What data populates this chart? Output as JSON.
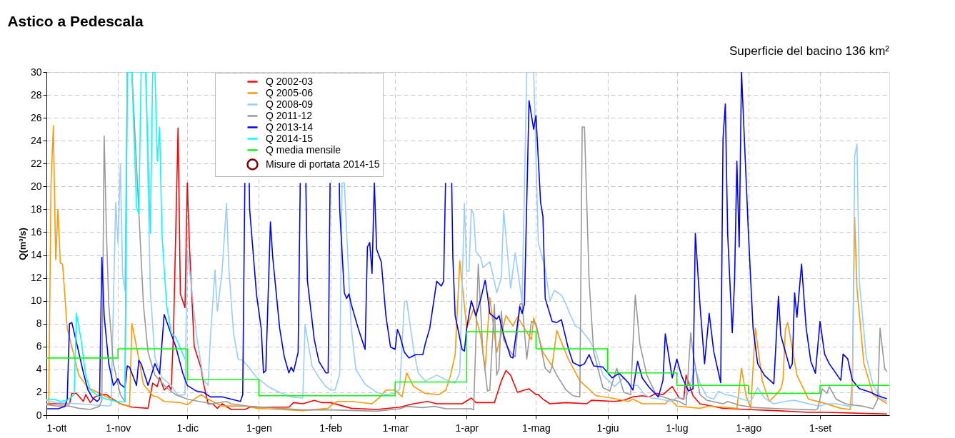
{
  "chart_data": {
    "type": "line",
    "title": "Astico a Pedescala",
    "ylabel": "Q(m³/s)",
    "annotations": [
      "Superficie del bacino 136 km²"
    ],
    "xlim": [
      "2014-10-01",
      "2015-10-01"
    ],
    "ylim": [
      0,
      30
    ],
    "xticks": [
      {
        "value": "2014-10-01",
        "label": "1-ott"
      },
      {
        "value": "2014-11-01",
        "label": "1-nov"
      },
      {
        "value": "2014-12-01",
        "label": "1-dic"
      },
      {
        "value": "2015-01-01",
        "label": "1-gen"
      },
      {
        "value": "2015-02-01",
        "label": "1-feb"
      },
      {
        "value": "2015-03-01",
        "label": "1-mar"
      },
      {
        "value": "2015-04-01",
        "label": "1-apr"
      },
      {
        "value": "2015-05-01",
        "label": "1-mag"
      },
      {
        "value": "2015-06-01",
        "label": "1-giu"
      },
      {
        "value": "2015-07-01",
        "label": "1-lug"
      },
      {
        "value": "2015-08-01",
        "label": "1-ago"
      },
      {
        "value": "2015-09-01",
        "label": "1-set"
      }
    ],
    "yticks": [
      0,
      2,
      4,
      6,
      8,
      10,
      12,
      14,
      16,
      18,
      20,
      22,
      24,
      26,
      28,
      30
    ],
    "grid": true,
    "legend": "top",
    "series": [
      {
        "name": "Q 2002-03",
        "color": "#ff0000",
        "x": [
          "2014-10-01",
          "2014-10-11",
          "2014-10-12",
          "2014-10-14",
          "2014-10-17",
          "2014-10-18",
          "2014-10-20",
          "2014-10-22",
          "2014-10-25",
          "2014-10-27",
          "2014-10-29",
          "2014-11-02",
          "2014-11-07",
          "2014-11-14",
          "2014-11-16",
          "2014-11-18",
          "2014-11-19",
          "2014-11-21",
          "2014-11-23",
          "2014-11-24",
          "2014-11-25",
          "2014-11-27",
          "2014-11-28",
          "2014-11-30",
          "2014-12-01",
          "2014-12-02",
          "2014-12-04",
          "2014-12-07",
          "2014-12-08",
          "2014-12-10",
          "2014-12-12",
          "2014-12-14",
          "2014-12-16",
          "2014-12-20",
          "2014-12-26",
          "2014-12-28",
          "2015-01-14",
          "2015-01-16",
          "2015-01-20",
          "2015-01-25",
          "2015-01-28",
          "2015-02-01",
          "2015-02-10",
          "2015-02-21",
          "2015-03-03",
          "2015-03-09",
          "2015-03-15",
          "2015-03-19",
          "2015-03-30",
          "2015-04-03",
          "2015-04-05",
          "2015-04-13",
          "2015-04-16",
          "2015-04-18",
          "2015-04-20",
          "2015-04-23",
          "2015-04-26",
          "2015-04-28",
          "2015-05-01",
          "2015-05-02",
          "2015-05-04",
          "2015-05-07",
          "2015-05-14",
          "2015-05-23",
          "2015-05-25",
          "2015-06-04",
          "2015-06-08",
          "2015-06-12",
          "2015-06-16",
          "2015-06-19",
          "2015-06-22",
          "2015-06-25",
          "2015-06-29",
          "2015-07-02",
          "2015-07-04",
          "2015-07-05",
          "2015-07-08",
          "2015-07-11",
          "2015-07-21",
          "2015-07-31",
          "2015-08-13",
          "2015-08-27",
          "2015-09-04",
          "2015-09-21",
          "2015-09-30"
        ],
        "values": [
          1.0,
          1.0,
          1.9,
          1.9,
          1.2,
          1.8,
          1.1,
          1.6,
          1.8,
          1.8,
          1.5,
          1.0,
          0.7,
          0.6,
          2.8,
          2.5,
          3.3,
          2.2,
          2.6,
          2.2,
          7.0,
          25.1,
          10.6,
          9.4,
          20.3,
          14.5,
          6.0,
          4.1,
          2.8,
          1.0,
          1.0,
          0.6,
          1.0,
          0.5,
          0.5,
          0.7,
          0.7,
          1.1,
          1.0,
          1.3,
          1.1,
          1.1,
          0.6,
          0.5,
          0.7,
          1.0,
          1.2,
          1.0,
          1.0,
          1.5,
          1.1,
          1.1,
          3.0,
          3.9,
          3.5,
          2.0,
          2.2,
          2.3,
          1.8,
          1.8,
          1.4,
          1.0,
          1.1,
          1.0,
          1.3,
          1.2,
          1.3,
          1.6,
          1.7,
          1.6,
          1.9,
          1.8,
          2.5,
          1.5,
          1.4,
          3.5,
          1.7,
          1.0,
          0.6,
          0.5,
          0.4,
          0.25,
          0.25,
          0.15,
          0.1
        ]
      },
      {
        "name": "Q 2005-06",
        "color": "#ff9900",
        "x": [
          "2014-10-01",
          "2014-10-02",
          "2014-10-03",
          "2014-10-04",
          "2014-10-05",
          "2014-10-06",
          "2014-10-07",
          "2014-10-08",
          "2014-10-10",
          "2014-10-15",
          "2014-10-19",
          "2014-10-24",
          "2014-10-30",
          "2014-11-03",
          "2014-11-06",
          "2014-11-07",
          "2014-11-09",
          "2014-11-12",
          "2014-11-16",
          "2014-11-18",
          "2014-11-21",
          "2014-11-28",
          "2014-12-01",
          "2014-12-04",
          "2014-12-07",
          "2014-12-09",
          "2014-12-12",
          "2014-12-16",
          "2014-12-27",
          "2014-12-31",
          "2015-01-10",
          "2015-01-20",
          "2015-01-31",
          "2015-02-01",
          "2015-02-04",
          "2015-02-10",
          "2015-02-19",
          "2015-02-22",
          "2015-02-25",
          "2015-03-01",
          "2015-03-04",
          "2015-03-06",
          "2015-03-09",
          "2015-03-14",
          "2015-03-20",
          "2015-03-23",
          "2015-03-25",
          "2015-03-27",
          "2015-03-29",
          "2015-04-01",
          "2015-04-04",
          "2015-04-07",
          "2015-04-09",
          "2015-04-11",
          "2015-04-14",
          "2015-04-18",
          "2015-04-21",
          "2015-04-23",
          "2015-04-26",
          "2015-04-29",
          "2015-04-30",
          "2015-05-04",
          "2015-05-08",
          "2015-05-10",
          "2015-05-15",
          "2015-05-20",
          "2015-05-27",
          "2015-06-03",
          "2015-06-10",
          "2015-06-12",
          "2015-06-16",
          "2015-06-26",
          "2015-06-28",
          "2015-07-01",
          "2015-07-11",
          "2015-07-15",
          "2015-07-27",
          "2015-07-29",
          "2015-07-31",
          "2015-08-02",
          "2015-08-04",
          "2015-08-07",
          "2015-08-10",
          "2015-08-13",
          "2015-08-15",
          "2015-08-16",
          "2015-08-17",
          "2015-08-18",
          "2015-08-22",
          "2015-08-27",
          "2015-09-02",
          "2015-09-10",
          "2015-09-14",
          "2015-09-15",
          "2015-09-16",
          "2015-09-17",
          "2015-09-20",
          "2015-09-24",
          "2015-09-30"
        ],
        "values": [
          1.0,
          1.0,
          20.3,
          25.3,
          13.6,
          18.0,
          13.3,
          13.2,
          7.6,
          3.5,
          2.4,
          1.9,
          1.3,
          0.9,
          0.8,
          8.0,
          6.0,
          2.7,
          1.7,
          1.6,
          1.2,
          1.1,
          0.9,
          1.4,
          1.8,
          1.5,
          1.2,
          0.8,
          0.8,
          0.6,
          0.5,
          0.4,
          0.6,
          0.8,
          1.2,
          1.2,
          1.0,
          1.5,
          2.2,
          2.2,
          1.6,
          3.7,
          2.5,
          1.9,
          1.8,
          2.2,
          3.5,
          5.3,
          13.5,
          7.6,
          9.3,
          7.0,
          4.1,
          10.3,
          5.5,
          8.7,
          7.8,
          8.6,
          7.6,
          6.6,
          8.5,
          5.5,
          4.3,
          7.4,
          4.9,
          3.0,
          1.7,
          1.5,
          1.2,
          1.4,
          1.0,
          1.0,
          1.4,
          0.8,
          0.6,
          0.8,
          0.6,
          4.1,
          1.7,
          0.6,
          7.6,
          3.0,
          1.2,
          1.8,
          2.3,
          3.1,
          7.5,
          8.1,
          3.5,
          1.4,
          1.1,
          0.6,
          0.5,
          3.0,
          17.3,
          11.1,
          4.5,
          1.8,
          1.0
        ]
      },
      {
        "name": "Q 2008-09",
        "color": "#99ccff",
        "x": [
          "2014-10-01",
          "2014-10-05",
          "2014-10-15",
          "2014-10-28",
          "2014-10-29",
          "2014-10-31",
          "2014-11-01",
          "2014-11-02",
          "2014-11-03",
          "2014-11-04",
          "2014-11-05",
          "2014-11-13",
          "2014-11-15",
          "2014-11-17",
          "2014-11-20",
          "2014-11-24",
          "2014-11-27",
          "2014-11-30",
          "2014-12-01",
          "2014-12-03",
          "2014-12-05",
          "2014-12-08",
          "2014-12-10",
          "2014-12-11",
          "2014-12-13",
          "2014-12-14",
          "2014-12-16",
          "2014-12-18",
          "2014-12-19",
          "2014-12-21",
          "2014-12-23",
          "2014-12-25",
          "2014-12-28",
          "2014-12-31",
          "2015-01-05",
          "2015-01-10",
          "2015-01-15",
          "2015-01-20",
          "2015-01-21",
          "2015-01-24",
          "2015-01-27",
          "2015-01-30",
          "2015-02-01",
          "2015-02-03",
          "2015-02-05",
          "2015-02-06",
          "2015-02-07",
          "2015-02-09",
          "2015-02-10",
          "2015-02-12",
          "2015-02-16",
          "2015-02-21",
          "2015-02-25",
          "2015-03-01",
          "2015-03-03",
          "2015-03-05",
          "2015-03-06",
          "2015-03-09",
          "2015-03-11",
          "2015-03-14",
          "2015-03-19",
          "2015-03-21",
          "2015-03-24",
          "2015-03-27",
          "2015-03-29",
          "2015-03-31",
          "2015-04-01",
          "2015-04-02",
          "2015-04-03",
          "2015-04-04",
          "2015-04-05",
          "2015-04-07",
          "2015-04-08",
          "2015-04-11",
          "2015-04-12",
          "2015-04-14",
          "2015-04-16",
          "2015-04-17",
          "2015-04-20",
          "2015-04-22",
          "2015-04-23",
          "2015-04-25",
          "2015-04-27",
          "2015-04-30",
          "2015-05-02",
          "2015-05-05",
          "2015-05-07",
          "2015-05-09",
          "2015-05-12",
          "2015-05-14",
          "2015-05-16",
          "2015-05-18",
          "2015-05-20",
          "2015-05-24",
          "2015-05-27",
          "2015-05-30",
          "2015-06-04",
          "2015-06-08",
          "2015-06-11",
          "2015-06-14",
          "2015-06-17",
          "2015-06-20",
          "2015-06-24",
          "2015-06-28",
          "2015-07-01",
          "2015-07-05",
          "2015-07-09",
          "2015-07-11",
          "2015-07-14",
          "2015-07-17",
          "2015-07-19",
          "2015-07-22",
          "2015-07-25",
          "2015-07-29",
          "2015-08-02",
          "2015-08-05",
          "2015-08-08",
          "2015-08-12",
          "2015-08-17",
          "2015-08-21",
          "2015-08-25",
          "2015-08-29",
          "2015-09-01",
          "2015-09-04",
          "2015-09-08",
          "2015-09-13",
          "2015-09-15",
          "2015-09-16",
          "2015-09-17",
          "2015-09-18",
          "2015-09-21",
          "2015-09-24",
          "2015-09-28",
          "2015-09-30"
        ],
        "values": [
          1.3,
          1.1,
          1.0,
          0.8,
          0.9,
          18.6,
          15.0,
          21.9,
          12.2,
          10.9,
          30,
          30,
          10.8,
          5.0,
          3.3,
          2.6,
          1.7,
          1.8,
          14.4,
          10.9,
          7.0,
          3.1,
          2.6,
          6.8,
          12.7,
          9.1,
          12.4,
          18.5,
          12.8,
          7.2,
          4.9,
          4.8,
          4.1,
          3.3,
          2.5,
          2.0,
          1.6,
          1.5,
          7.9,
          4.3,
          3.3,
          2.5,
          2.2,
          2.2,
          3.6,
          20.3,
          20.3,
          11.8,
          7.6,
          4.0,
          2.7,
          2.0,
          1.8,
          1.9,
          2.3,
          9.9,
          10.0,
          5.75,
          3.7,
          3.0,
          3.5,
          3.3,
          3.0,
          2.8,
          3.7,
          18.5,
          12.6,
          12.6,
          18.0,
          17.6,
          14.3,
          13.8,
          12.9,
          13.4,
          12.6,
          10.7,
          12.0,
          17.9,
          11.1,
          14.2,
          12.8,
          9.9,
          30,
          30,
          15.1,
          12.8,
          10.0,
          10.9,
          10.5,
          9.7,
          8.7,
          7.8,
          7.6,
          6.6,
          5.5,
          3.5,
          2.5,
          3.3,
          2.6,
          2.6,
          1.8,
          1.5,
          1.4,
          1.2,
          1.5,
          1.5,
          4.1,
          2.8,
          1.6,
          1.4,
          2.1,
          1.8,
          1.7,
          1.4,
          1.2,
          2.4,
          1.5,
          1.0,
          1.2,
          1.3,
          1.1,
          0.9,
          0.8,
          1.0,
          1.0,
          0.8,
          0.8,
          22.6,
          23.7,
          11.8,
          5.1,
          2.6,
          1.4,
          1.2
        ]
      },
      {
        "name": "Q 2011-12",
        "color": "#999999",
        "x": [
          "2014-10-01",
          "2014-10-06",
          "2014-10-11",
          "2014-10-15",
          "2014-10-20",
          "2014-10-23",
          "2014-10-24",
          "2014-10-25",
          "2014-10-26",
          "2014-10-27",
          "2014-10-28",
          "2014-10-30",
          "2014-11-02",
          "2014-11-04",
          "2014-11-05",
          "2014-11-07",
          "2014-11-10",
          "2014-11-12",
          "2014-11-14",
          "2014-11-17",
          "2014-11-22",
          "2014-11-26",
          "2014-12-01",
          "2014-12-06",
          "2014-12-12",
          "2014-12-18",
          "2014-12-20",
          "2014-12-27",
          "2015-01-10",
          "2015-01-20",
          "2015-02-01",
          "2015-02-21",
          "2015-03-03",
          "2015-03-06",
          "2015-03-13",
          "2015-03-18",
          "2015-03-23",
          "2015-04-03",
          "2015-04-04",
          "2015-04-06",
          "2015-04-08",
          "2015-04-10",
          "2015-04-11",
          "2015-04-13",
          "2015-04-14",
          "2015-04-15",
          "2015-04-16",
          "2015-04-17",
          "2015-04-20",
          "2015-04-22",
          "2015-04-24",
          "2015-04-25",
          "2015-04-27",
          "2015-04-29",
          "2015-05-01",
          "2015-05-02",
          "2015-05-05",
          "2015-05-07",
          "2015-05-08",
          "2015-05-10",
          "2015-05-14",
          "2015-05-17",
          "2015-05-20",
          "2015-05-21",
          "2015-05-22",
          "2015-05-24",
          "2015-05-26",
          "2015-05-30",
          "2015-06-02",
          "2015-06-05",
          "2015-06-08",
          "2015-06-11",
          "2015-06-13",
          "2015-06-15",
          "2015-06-18",
          "2015-06-22",
          "2015-06-28",
          "2015-07-02",
          "2015-07-05",
          "2015-07-07",
          "2015-07-08",
          "2015-07-11",
          "2015-07-14",
          "2015-07-21",
          "2015-07-23",
          "2015-07-28",
          "2015-08-04",
          "2015-08-15",
          "2015-08-30",
          "2015-08-31",
          "2015-09-02",
          "2015-09-04",
          "2015-09-05",
          "2015-09-08",
          "2015-09-12",
          "2015-09-16",
          "2015-09-20",
          "2015-09-24",
          "2015-09-26",
          "2015-09-27",
          "2015-09-29",
          "2015-09-30"
        ],
        "values": [
          0.9,
          0.8,
          0.8,
          0.6,
          0.5,
          0.7,
          0.8,
          1.3,
          24.4,
          15.9,
          9.7,
          4.5,
          1.8,
          1.2,
          30,
          30,
          17.8,
          9.7,
          5.5,
          3.5,
          2.4,
          1.8,
          1.4,
          1.2,
          1.0,
          1.2,
          1.0,
          0.8,
          0.6,
          0.46,
          0.46,
          0.35,
          0.56,
          0.77,
          0.66,
          0.77,
          0.56,
          0.56,
          0.46,
          13.2,
          5.5,
          2.1,
          2.2,
          9.7,
          3.5,
          4.1,
          9.1,
          6.6,
          5.5,
          5.1,
          9.7,
          9.8,
          4.9,
          8.2,
          8.0,
          7.1,
          4.1,
          3.7,
          4.3,
          3.5,
          2.2,
          1.7,
          1.6,
          25.2,
          25.2,
          11.8,
          5.5,
          2.4,
          2.1,
          4.1,
          2.0,
          1.8,
          10.5,
          6.2,
          3.5,
          1.8,
          1.4,
          1.2,
          0.87,
          7.2,
          5.5,
          1.8,
          1.3,
          1.0,
          1.2,
          0.87,
          0.66,
          0.56,
          0.46,
          0.56,
          2.3,
          1.9,
          2.5,
          1.4,
          1.0,
          0.87,
          0.77,
          0.56,
          1.4,
          7.6,
          4.1,
          3.8
        ]
      },
      {
        "name": "Q 2013-14",
        "color": "#0000ff",
        "x": [
          "2014-10-01",
          "2014-10-06",
          "2014-10-09",
          "2014-10-10",
          "2014-10-11",
          "2014-10-12",
          "2014-10-15",
          "2014-10-17",
          "2014-10-19",
          "2014-10-21",
          "2014-10-23",
          "2014-10-24",
          "2014-10-25",
          "2014-10-26",
          "2014-10-28",
          "2014-10-30",
          "2014-11-01",
          "2014-11-02",
          "2014-11-04",
          "2014-11-05",
          "2014-11-06",
          "2014-11-09",
          "2014-11-10",
          "2014-11-11",
          "2014-11-14",
          "2014-11-17",
          "2014-11-19",
          "2014-11-21",
          "2014-11-24",
          "2014-11-26",
          "2014-11-29",
          "2014-12-01",
          "2014-12-05",
          "2014-12-08",
          "2014-12-11",
          "2014-12-16",
          "2014-12-20",
          "2014-12-24",
          "2014-12-25",
          "2014-12-25T22:00",
          "2014-12-26",
          "2014-12-27T20:00",
          "2014-12-28",
          "2014-12-31",
          "2015-01-02",
          "2015-01-03",
          "2015-01-04",
          "2015-01-06",
          "2015-01-07",
          "2015-01-10",
          "2015-01-12",
          "2015-01-14",
          "2015-01-15",
          "2015-01-16",
          "2015-01-18",
          "2015-01-18T22:00",
          "2015-01-19",
          "2015-01-21T08:00",
          "2015-01-22",
          "2015-01-25",
          "2015-01-27",
          "2015-01-30",
          "2015-01-31",
          "2015-01-31T20:00",
          "2015-02-01",
          "2015-02-04T20:00",
          "2015-02-05",
          "2015-02-07",
          "2015-02-08",
          "2015-02-09",
          "2015-02-10",
          "2015-02-13",
          "2015-02-16",
          "2015-02-17",
          "2015-02-18",
          "2015-02-19",
          "2015-02-20",
          "2015-02-21",
          "2015-02-23",
          "2015-02-25",
          "2015-02-27",
          "2015-03-01",
          "2015-03-02",
          "2015-03-03",
          "2015-03-05",
          "2015-03-07",
          "2015-03-10",
          "2015-03-13",
          "2015-03-14",
          "2015-03-16",
          "2015-03-19",
          "2015-03-21",
          "2015-03-22",
          "2015-03-22T20:00",
          "2015-03-23",
          "2015-03-25T12:00",
          "2015-03-26",
          "2015-03-27",
          "2015-03-30",
          "2015-03-31",
          "2015-04-01",
          "2015-04-03",
          "2015-04-05",
          "2015-04-07",
          "2015-04-09",
          "2015-04-10",
          "2015-04-11",
          "2015-04-14",
          "2015-04-15",
          "2015-04-17",
          "2015-04-20",
          "2015-04-21",
          "2015-04-24",
          "2015-04-25",
          "2015-04-26",
          "2015-04-28",
          "2015-04-30",
          "2015-05-01",
          "2015-05-03",
          "2015-05-04",
          "2015-05-05",
          "2015-05-08",
          "2015-05-10",
          "2015-05-12",
          "2015-05-15",
          "2015-05-17",
          "2015-05-20",
          "2015-05-22",
          "2015-05-24",
          "2015-05-26",
          "2015-05-30",
          "2015-06-03",
          "2015-06-06",
          "2015-06-10",
          "2015-06-12",
          "2015-06-14",
          "2015-06-16",
          "2015-06-19",
          "2015-06-22",
          "2015-06-23",
          "2015-06-25",
          "2015-06-26",
          "2015-06-29",
          "2015-07-01",
          "2015-07-03",
          "2015-07-06",
          "2015-07-08",
          "2015-07-09",
          "2015-07-11",
          "2015-07-13",
          "2015-07-15",
          "2015-07-17",
          "2015-07-20",
          "2015-07-21",
          "2015-07-22",
          "2015-07-23",
          "2015-07-25",
          "2015-07-26",
          "2015-07-27",
          "2015-07-28",
          "2015-07-29",
          "2015-08-01",
          "2015-08-03",
          "2015-08-05",
          "2015-08-08",
          "2015-08-12",
          "2015-08-14",
          "2015-08-15",
          "2015-08-19",
          "2015-08-20",
          "2015-08-21",
          "2015-08-22",
          "2015-08-24",
          "2015-08-26",
          "2015-08-28",
          "2015-08-30",
          "2015-09-01",
          "2015-09-03",
          "2015-09-05",
          "2015-09-10",
          "2015-09-11",
          "2015-09-13",
          "2015-09-15",
          "2015-09-18",
          "2015-09-23",
          "2015-09-26",
          "2015-09-30"
        ],
        "values": [
          0.56,
          0.56,
          0.77,
          1.4,
          8.0,
          8.1,
          5.5,
          3.7,
          2.2,
          1.5,
          1.2,
          1.4,
          13.8,
          8.7,
          4.5,
          2.6,
          3.2,
          2.7,
          2.4,
          4.3,
          4.2,
          2.6,
          4.8,
          4.5,
          2.6,
          4.5,
          3.6,
          8.8,
          7.1,
          6.0,
          3.7,
          2.6,
          2.1,
          2.0,
          1.6,
          1.6,
          1.4,
          1.2,
          1.8,
          20.3,
          null,
          20.3,
          18,
          10.5,
          7.6,
          3.7,
          3.9,
          16.9,
          13.8,
          7.6,
          5.1,
          3.7,
          4.2,
          3.8,
          5.5,
          20.3,
          null,
          20.3,
          11.8,
          6.6,
          4.7,
          3.7,
          3.7,
          20.3,
          null,
          20.3,
          18,
          10.7,
          10.2,
          10.6,
          9.7,
          7.6,
          5.75,
          14.7,
          15.1,
          12.4,
          20.3,
          14.5,
          13.4,
          8.7,
          5.96,
          5.75,
          7.5,
          7.0,
          5.5,
          5.0,
          5.3,
          5.3,
          6.2,
          7.6,
          11.7,
          11.3,
          11.7,
          20.3,
          null,
          20.3,
          13.8,
          8.7,
          5.75,
          5.6,
          7.6,
          10.0,
          8.7,
          10.1,
          11.8,
          10.5,
          8.9,
          8.4,
          8.7,
          7.0,
          5.1,
          5.0,
          9.5,
          8.9,
          9.7,
          27.5,
          25.0,
          26.2,
          18.6,
          17.4,
          10.2,
          8.2,
          8.1,
          8.35,
          5.85,
          4.6,
          4.3,
          4.5,
          5.3,
          4.3,
          4.2,
          3.26,
          3.67,
          2.84,
          2.2,
          4.7,
          3.26,
          2.43,
          1.8,
          1.6,
          3.05,
          7.1,
          3.26,
          4.9,
          3.47,
          2.12,
          2.3,
          15.9,
          9.7,
          4.5,
          8.9,
          5.54,
          2.84,
          24.2,
          27.2,
          15.9,
          7.2,
          11.8,
          22.2,
          14.7,
          30,
          15.9,
          7.62,
          4.5,
          3.47,
          2.74,
          10.4,
          7.0,
          4.09,
          4.5,
          10.7,
          8.55,
          13.2,
          7.62,
          4.71,
          3.67,
          8.2,
          5.34,
          4.5,
          3.05,
          5.34,
          4.92,
          3.05,
          2.33,
          2.0,
          1.7,
          1.43
        ]
      },
      {
        "name": "Q 2014-15",
        "color": "#00ffff",
        "x": [
          "2014-10-01",
          "2014-10-05",
          "2014-10-07",
          "2014-10-10",
          "2014-10-13",
          "2014-10-14",
          "2014-10-16",
          "2014-10-18",
          "2014-10-20",
          "2014-10-24",
          "2014-10-27",
          "2014-10-31",
          "2014-11-04",
          "2014-11-05",
          "2014-11-07",
          "2014-11-09",
          "2014-11-10",
          "2014-11-11",
          "2014-11-13",
          "2014-11-15",
          "2014-11-16",
          "2014-11-17",
          "2014-11-18",
          "2014-11-19",
          "2014-11-20",
          "2014-11-22",
          "2014-11-24",
          "2014-11-26",
          "2014-11-30"
        ],
        "values": [
          1.4,
          1.35,
          1.2,
          1.3,
          1.8,
          8.9,
          6.6,
          3.5,
          2.2,
          1.6,
          1.4,
          1.2,
          1.15,
          30,
          30,
          18.2,
          17.6,
          30,
          30,
          15.9,
          30,
          30,
          22.2,
          25.2,
          15.9,
          9.7,
          7.2,
          6.8,
          4.9
        ]
      },
      {
        "name": "Q media mensile",
        "color": "#00ff00",
        "type": "step",
        "x": [
          "2014-10-01",
          "2014-11-01",
          "2014-12-01",
          "2015-01-01",
          "2015-02-01",
          "2015-03-01",
          "2015-04-01",
          "2015-05-01",
          "2015-06-01",
          "2015-07-01",
          "2015-08-01",
          "2015-09-01",
          "2015-10-01"
        ],
        "values": [
          5.0,
          5.8,
          3.1,
          1.7,
          1.7,
          2.9,
          7.3,
          5.8,
          3.7,
          2.6,
          1.9,
          2.6,
          2.6
        ]
      },
      {
        "name": "Misure di portata 2014-15",
        "color": "#800000",
        "type": "scatter"
      }
    ]
  }
}
